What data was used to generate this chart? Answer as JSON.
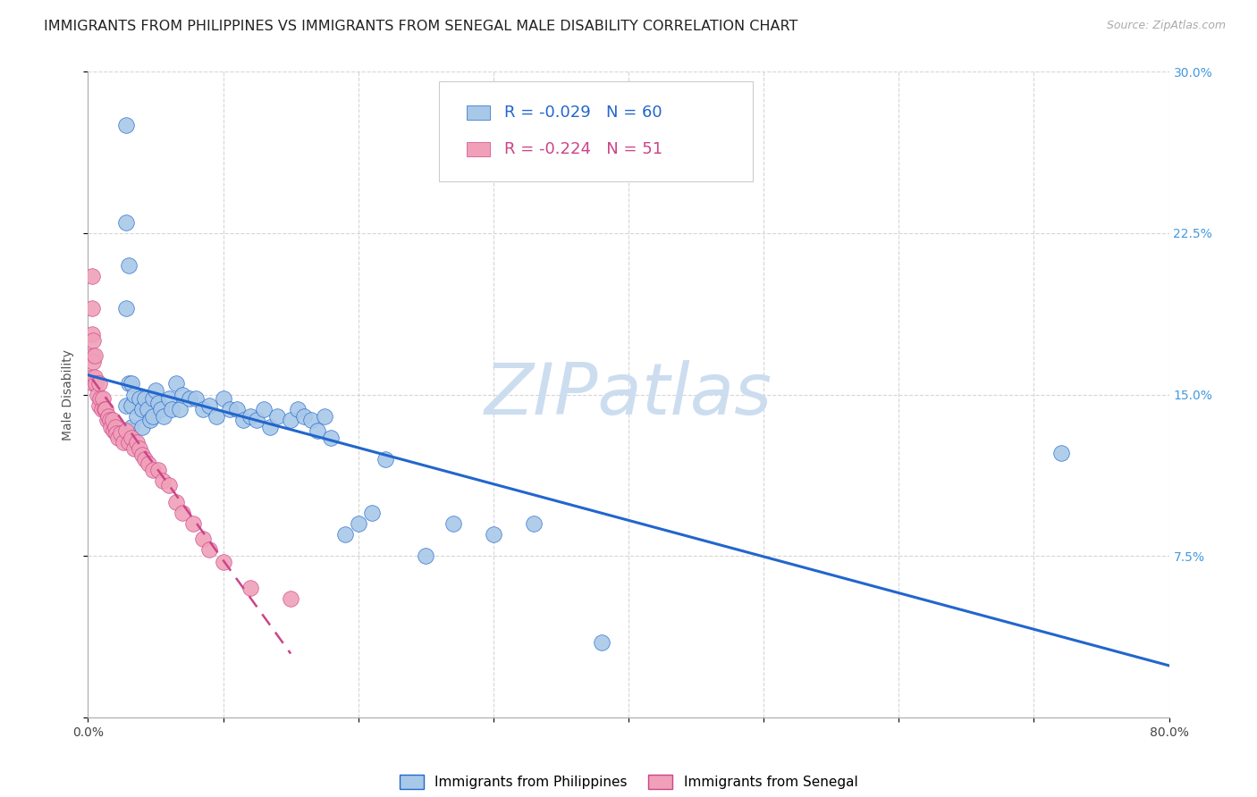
{
  "title": "IMMIGRANTS FROM PHILIPPINES VS IMMIGRANTS FROM SENEGAL MALE DISABILITY CORRELATION CHART",
  "source": "Source: ZipAtlas.com",
  "ylabel": "Male Disability",
  "xlim": [
    0,
    0.8
  ],
  "ylim": [
    0,
    0.3
  ],
  "xtick_positions": [
    0.0,
    0.1,
    0.2,
    0.3,
    0.4,
    0.5,
    0.6,
    0.7,
    0.8
  ],
  "ytick_positions": [
    0.0,
    0.075,
    0.15,
    0.225,
    0.3
  ],
  "ytick_labels": [
    "",
    "7.5%",
    "15.0%",
    "22.5%",
    "30.0%"
  ],
  "legend1_r": "-0.029",
  "legend1_n": "60",
  "legend2_r": "-0.224",
  "legend2_n": "51",
  "color_philippines": "#a8c8e8",
  "color_senegal": "#f0a0b8",
  "line_philippines": "#2266cc",
  "line_senegal": "#cc4488",
  "watermark_color": "#ccddf0",
  "grid_color": "#cccccc",
  "bg_color": "#ffffff",
  "right_tick_color": "#4499dd",
  "philippines_x": [
    0.028,
    0.028,
    0.028,
    0.028,
    0.03,
    0.03,
    0.03,
    0.032,
    0.032,
    0.032,
    0.034,
    0.036,
    0.038,
    0.04,
    0.04,
    0.042,
    0.044,
    0.046,
    0.048,
    0.048,
    0.05,
    0.052,
    0.054,
    0.056,
    0.06,
    0.062,
    0.065,
    0.068,
    0.07,
    0.075,
    0.08,
    0.085,
    0.09,
    0.095,
    0.1,
    0.105,
    0.11,
    0.115,
    0.12,
    0.125,
    0.13,
    0.135,
    0.14,
    0.15,
    0.155,
    0.16,
    0.165,
    0.17,
    0.175,
    0.18,
    0.19,
    0.2,
    0.21,
    0.22,
    0.25,
    0.27,
    0.3,
    0.33,
    0.38,
    0.72
  ],
  "philippines_y": [
    0.275,
    0.23,
    0.19,
    0.145,
    0.21,
    0.155,
    0.13,
    0.155,
    0.145,
    0.135,
    0.15,
    0.14,
    0.148,
    0.143,
    0.135,
    0.148,
    0.143,
    0.138,
    0.148,
    0.14,
    0.152,
    0.146,
    0.143,
    0.14,
    0.148,
    0.143,
    0.155,
    0.143,
    0.15,
    0.148,
    0.148,
    0.143,
    0.145,
    0.14,
    0.148,
    0.143,
    0.143,
    0.138,
    0.14,
    0.138,
    0.143,
    0.135,
    0.14,
    0.138,
    0.143,
    0.14,
    0.138,
    0.133,
    0.14,
    0.13,
    0.085,
    0.09,
    0.095,
    0.12,
    0.075,
    0.09,
    0.085,
    0.09,
    0.035,
    0.123
  ],
  "senegal_x": [
    0.003,
    0.003,
    0.003,
    0.003,
    0.003,
    0.004,
    0.004,
    0.004,
    0.005,
    0.005,
    0.006,
    0.007,
    0.008,
    0.008,
    0.009,
    0.01,
    0.011,
    0.012,
    0.013,
    0.014,
    0.015,
    0.016,
    0.017,
    0.018,
    0.019,
    0.02,
    0.021,
    0.022,
    0.024,
    0.026,
    0.028,
    0.03,
    0.032,
    0.034,
    0.036,
    0.038,
    0.04,
    0.042,
    0.045,
    0.048,
    0.052,
    0.055,
    0.06,
    0.065,
    0.07,
    0.078,
    0.085,
    0.09,
    0.1,
    0.12,
    0.15
  ],
  "senegal_y": [
    0.205,
    0.19,
    0.178,
    0.168,
    0.158,
    0.175,
    0.165,
    0.155,
    0.168,
    0.158,
    0.155,
    0.15,
    0.155,
    0.145,
    0.148,
    0.143,
    0.148,
    0.143,
    0.143,
    0.138,
    0.14,
    0.138,
    0.135,
    0.138,
    0.133,
    0.135,
    0.132,
    0.13,
    0.132,
    0.128,
    0.133,
    0.128,
    0.13,
    0.125,
    0.128,
    0.125,
    0.122,
    0.12,
    0.118,
    0.115,
    0.115,
    0.11,
    0.108,
    0.1,
    0.095,
    0.09,
    0.083,
    0.078,
    0.072,
    0.06,
    0.055
  ],
  "title_fontsize": 11.5,
  "source_fontsize": 9,
  "tick_fontsize": 10,
  "ylabel_fontsize": 10,
  "legend_fontsize": 13
}
